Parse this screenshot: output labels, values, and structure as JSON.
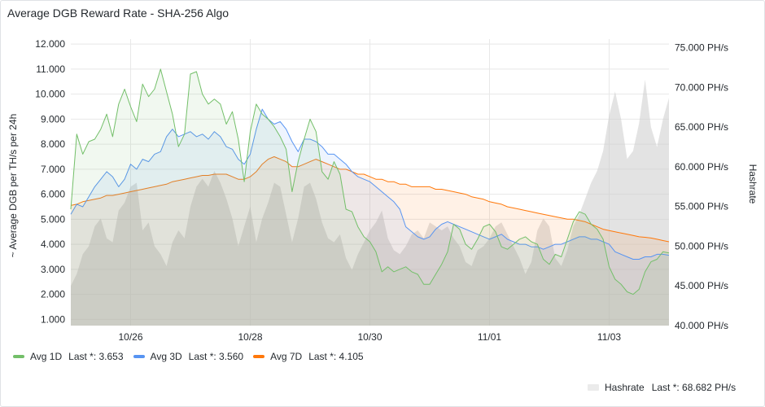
{
  "panel": {
    "title": "Average DGB Reward Rate - SHA-256 Algo"
  },
  "chart_data": {
    "type": "line",
    "x_ticks": [
      "10/26",
      "10/28",
      "10/30",
      "11/01",
      "11/03"
    ],
    "x_tick_positions_days": [
      1.5,
      3.5,
      5.5,
      7.5,
      9.5
    ],
    "x_range_days": [
      0.5,
      10.5
    ],
    "y_left": {
      "label": "~ Average DGB per TH/s per 24h",
      "ticks": [
        "1.000",
        "2.000",
        "3.000",
        "4.000",
        "5.000",
        "6.000",
        "7.000",
        "8.000",
        "9.000",
        "10.000",
        "11.000",
        "12.000"
      ],
      "range": [
        0.75,
        12.2
      ]
    },
    "y_right": {
      "label": "Hashrate",
      "ticks": [
        "40.000 PH/s",
        "45.000 PH/s",
        "50.000 PH/s",
        "55.000 PH/s",
        "60.000 PH/s",
        "65.000 PH/s",
        "70.000 PH/s",
        "75.000 PH/s"
      ],
      "range": [
        40000,
        76100
      ]
    },
    "series": [
      {
        "name": "Avg 1D",
        "legend_value": "Last *: 3.653",
        "color": "#73bf69",
        "axis": "left",
        "x": [
          0.5,
          0.6,
          0.7,
          0.8,
          0.9,
          1.0,
          1.1,
          1.2,
          1.3,
          1.4,
          1.5,
          1.6,
          1.7,
          1.8,
          1.9,
          2.0,
          2.1,
          2.2,
          2.3,
          2.4,
          2.5,
          2.6,
          2.7,
          2.8,
          2.9,
          3.0,
          3.1,
          3.2,
          3.3,
          3.4,
          3.5,
          3.6,
          3.7,
          3.8,
          3.9,
          4.0,
          4.1,
          4.2,
          4.3,
          4.4,
          4.5,
          4.6,
          4.7,
          4.8,
          4.9,
          5.0,
          5.1,
          5.2,
          5.3,
          5.4,
          5.5,
          5.6,
          5.7,
          5.8,
          5.9,
          6.0,
          6.1,
          6.2,
          6.3,
          6.4,
          6.5,
          6.6,
          6.7,
          6.8,
          6.9,
          7.0,
          7.1,
          7.2,
          7.3,
          7.4,
          7.5,
          7.6,
          7.7,
          7.8,
          7.9,
          8.0,
          8.1,
          8.2,
          8.3,
          8.4,
          8.5,
          8.6,
          8.7,
          8.8,
          8.9,
          9.0,
          9.1,
          9.2,
          9.3,
          9.4,
          9.5,
          9.6,
          9.7,
          9.8,
          9.9,
          10.0,
          10.1,
          10.2,
          10.3,
          10.4,
          10.5
        ],
        "y": [
          5.4,
          8.4,
          7.6,
          8.1,
          8.2,
          8.6,
          9.2,
          8.3,
          9.6,
          10.2,
          9.5,
          8.9,
          10.4,
          9.9,
          10.2,
          11.0,
          10.1,
          9.2,
          7.9,
          8.4,
          10.8,
          10.9,
          10.0,
          9.6,
          9.8,
          9.6,
          8.8,
          9.3,
          8.2,
          6.5,
          8.5,
          9.6,
          9.2,
          9.0,
          8.7,
          8.3,
          7.8,
          6.1,
          7.3,
          8.2,
          9.0,
          8.5,
          6.9,
          6.6,
          7.3,
          6.8,
          5.4,
          5.3,
          4.7,
          4.3,
          4.1,
          3.7,
          2.9,
          3.1,
          2.9,
          3.0,
          3.1,
          2.9,
          2.8,
          2.4,
          2.4,
          2.8,
          3.2,
          3.7,
          4.8,
          4.6,
          4.0,
          3.8,
          4.2,
          4.7,
          4.8,
          4.5,
          3.9,
          3.8,
          4.0,
          4.2,
          4.3,
          4.1,
          4.0,
          3.4,
          3.2,
          3.6,
          3.5,
          4.2,
          4.9,
          5.3,
          5.2,
          4.8,
          4.6,
          4.2,
          3.1,
          2.6,
          2.4,
          2.1,
          2.0,
          2.2,
          2.9,
          3.3,
          3.4,
          3.7,
          3.65
        ]
      },
      {
        "name": "Avg 3D",
        "legend_value": "Last *: 3.560",
        "color": "#5794f2",
        "axis": "left",
        "x": [
          0.5,
          0.6,
          0.7,
          0.8,
          0.9,
          1.0,
          1.1,
          1.2,
          1.3,
          1.4,
          1.5,
          1.6,
          1.7,
          1.8,
          1.9,
          2.0,
          2.1,
          2.2,
          2.3,
          2.4,
          2.5,
          2.6,
          2.7,
          2.8,
          2.9,
          3.0,
          3.1,
          3.2,
          3.3,
          3.4,
          3.5,
          3.6,
          3.7,
          3.8,
          3.9,
          4.0,
          4.1,
          4.2,
          4.3,
          4.4,
          4.5,
          4.6,
          4.7,
          4.8,
          4.9,
          5.0,
          5.1,
          5.2,
          5.3,
          5.4,
          5.5,
          5.6,
          5.7,
          5.8,
          5.9,
          6.0,
          6.1,
          6.2,
          6.3,
          6.4,
          6.5,
          6.6,
          6.7,
          6.8,
          6.9,
          7.0,
          7.1,
          7.2,
          7.3,
          7.4,
          7.5,
          7.6,
          7.7,
          7.8,
          7.9,
          8.0,
          8.1,
          8.2,
          8.3,
          8.4,
          8.5,
          8.6,
          8.7,
          8.8,
          8.9,
          9.0,
          9.1,
          9.2,
          9.3,
          9.4,
          9.5,
          9.6,
          9.7,
          9.8,
          9.9,
          10.0,
          10.1,
          10.2,
          10.3,
          10.4,
          10.5
        ],
        "y": [
          5.2,
          5.6,
          5.5,
          5.9,
          6.3,
          6.6,
          6.9,
          6.7,
          6.3,
          6.6,
          7.2,
          7.0,
          7.4,
          7.3,
          7.6,
          7.7,
          8.3,
          8.6,
          8.3,
          8.4,
          8.5,
          8.3,
          8.4,
          8.2,
          8.5,
          8.3,
          7.9,
          7.8,
          7.4,
          7.2,
          7.6,
          8.6,
          9.4,
          9.0,
          8.8,
          8.9,
          8.6,
          8.1,
          7.7,
          8.2,
          8.2,
          8.1,
          7.9,
          7.6,
          7.6,
          7.4,
          7.2,
          6.9,
          6.7,
          6.6,
          6.5,
          6.3,
          6.1,
          5.9,
          5.7,
          5.4,
          4.7,
          4.5,
          4.3,
          4.2,
          4.3,
          4.6,
          4.8,
          4.9,
          4.8,
          4.7,
          4.6,
          4.5,
          4.4,
          4.3,
          4.2,
          4.3,
          4.4,
          4.2,
          4.1,
          4.0,
          4.0,
          3.9,
          3.9,
          3.8,
          3.9,
          4.0,
          4.0,
          4.1,
          4.2,
          4.3,
          4.3,
          4.2,
          4.2,
          4.1,
          4.0,
          3.7,
          3.6,
          3.5,
          3.4,
          3.4,
          3.5,
          3.5,
          3.6,
          3.6,
          3.56
        ]
      },
      {
        "name": "Avg 7D",
        "legend_value": "Last *: 4.105",
        "color": "#ff780a",
        "axis": "left",
        "x": [
          0.5,
          0.6,
          0.7,
          0.8,
          0.9,
          1.0,
          1.1,
          1.2,
          1.3,
          1.4,
          1.5,
          1.6,
          1.7,
          1.8,
          1.9,
          2.0,
          2.1,
          2.2,
          2.3,
          2.4,
          2.5,
          2.6,
          2.7,
          2.8,
          2.9,
          3.0,
          3.1,
          3.2,
          3.3,
          3.4,
          3.5,
          3.6,
          3.7,
          3.8,
          3.9,
          4.0,
          4.1,
          4.2,
          4.3,
          4.4,
          4.5,
          4.6,
          4.7,
          4.8,
          4.9,
          5.0,
          5.1,
          5.2,
          5.3,
          5.4,
          5.5,
          5.6,
          5.7,
          5.8,
          5.9,
          6.0,
          6.1,
          6.2,
          6.3,
          6.4,
          6.5,
          6.6,
          6.7,
          6.8,
          6.9,
          7.0,
          7.1,
          7.2,
          7.3,
          7.4,
          7.5,
          7.6,
          7.7,
          7.8,
          7.9,
          8.0,
          8.1,
          8.2,
          8.3,
          8.4,
          8.5,
          8.6,
          8.7,
          8.8,
          8.9,
          9.0,
          9.1,
          9.2,
          9.3,
          9.4,
          9.5,
          9.6,
          9.7,
          9.8,
          9.9,
          10.0,
          10.1,
          10.2,
          10.3,
          10.4,
          10.5
        ],
        "y": [
          5.55,
          5.6,
          5.7,
          5.75,
          5.8,
          5.85,
          5.95,
          5.95,
          6.0,
          6.05,
          6.1,
          6.15,
          6.2,
          6.25,
          6.3,
          6.35,
          6.4,
          6.5,
          6.55,
          6.6,
          6.65,
          6.7,
          6.75,
          6.75,
          6.8,
          6.8,
          6.8,
          6.7,
          6.6,
          6.6,
          6.7,
          6.9,
          7.2,
          7.4,
          7.5,
          7.4,
          7.3,
          7.1,
          7.1,
          7.2,
          7.3,
          7.4,
          7.3,
          7.2,
          7.1,
          7.0,
          7.0,
          6.9,
          6.8,
          6.8,
          6.7,
          6.6,
          6.6,
          6.5,
          6.5,
          6.4,
          6.4,
          6.3,
          6.3,
          6.3,
          6.3,
          6.2,
          6.2,
          6.15,
          6.1,
          6.05,
          6.0,
          5.9,
          5.85,
          5.8,
          5.7,
          5.65,
          5.6,
          5.5,
          5.45,
          5.4,
          5.35,
          5.3,
          5.25,
          5.2,
          5.15,
          5.1,
          5.05,
          5.0,
          5.0,
          4.95,
          4.9,
          4.8,
          4.7,
          4.6,
          4.55,
          4.5,
          4.45,
          4.4,
          4.35,
          4.3,
          4.28,
          4.25,
          4.2,
          4.15,
          4.1
        ]
      }
    ],
    "hashrate": {
      "name": "Hashrate",
      "legend_value": "Last *: 68.682 PH/s",
      "color": "#c7c7c7",
      "axis": "right",
      "x": [
        0.5,
        0.6,
        0.7,
        0.8,
        0.9,
        1.0,
        1.1,
        1.2,
        1.3,
        1.4,
        1.5,
        1.6,
        1.7,
        1.8,
        1.9,
        2.0,
        2.1,
        2.2,
        2.3,
        2.4,
        2.5,
        2.6,
        2.7,
        2.8,
        2.9,
        3.0,
        3.1,
        3.2,
        3.3,
        3.4,
        3.5,
        3.6,
        3.7,
        3.8,
        3.9,
        4.0,
        4.1,
        4.2,
        4.3,
        4.4,
        4.5,
        4.6,
        4.7,
        4.8,
        4.9,
        5.0,
        5.1,
        5.2,
        5.3,
        5.4,
        5.5,
        5.6,
        5.7,
        5.8,
        5.9,
        6.0,
        6.1,
        6.2,
        6.3,
        6.4,
        6.5,
        6.6,
        6.7,
        6.8,
        6.9,
        7.0,
        7.1,
        7.2,
        7.3,
        7.4,
        7.5,
        7.6,
        7.7,
        7.8,
        7.9,
        8.0,
        8.1,
        8.2,
        8.3,
        8.4,
        8.5,
        8.6,
        8.7,
        8.8,
        8.9,
        9.0,
        9.1,
        9.2,
        9.3,
        9.4,
        9.5,
        9.6,
        9.7,
        9.8,
        9.9,
        10.0,
        10.1,
        10.2,
        10.3,
        10.4,
        10.5
      ],
      "y": [
        45000,
        46500,
        49000,
        50000,
        52500,
        53500,
        51000,
        50500,
        54500,
        55500,
        57500,
        58000,
        52000,
        53000,
        50000,
        49000,
        47500,
        50500,
        52000,
        51000,
        55000,
        57500,
        58500,
        57500,
        59500,
        58000,
        56000,
        53500,
        50000,
        52500,
        55000,
        50500,
        53500,
        55500,
        58000,
        57500,
        54000,
        50500,
        53500,
        57500,
        58000,
        56000,
        53000,
        51000,
        50500,
        51500,
        48500,
        47000,
        49000,
        50500,
        52000,
        53000,
        54500,
        51000,
        49500,
        49000,
        50000,
        51500,
        52000,
        51000,
        53000,
        52500,
        52000,
        52500,
        51000,
        50000,
        48000,
        47500,
        49500,
        50000,
        51000,
        52500,
        53000,
        51500,
        50000,
        48500,
        46500,
        48000,
        52000,
        53500,
        52500,
        48500,
        47500,
        49500,
        52500,
        54000,
        56000,
        58000,
        59500,
        62000,
        66500,
        69500,
        66000,
        61000,
        62000,
        65500,
        71000,
        65000,
        62500,
        66000,
        68682
      ]
    }
  },
  "legend": [
    {
      "name": "Avg 1D",
      "value": "Last *: 3.653",
      "color": "#73bf69"
    },
    {
      "name": "Avg 3D",
      "value": "Last *: 3.560",
      "color": "#5794f2"
    },
    {
      "name": "Avg 7D",
      "value": "Last *: 4.105",
      "color": "#ff780a"
    }
  ],
  "legend_right": {
    "name": "Hashrate",
    "value": "Last *: 68.682 PH/s",
    "color": "#ebebeb"
  }
}
